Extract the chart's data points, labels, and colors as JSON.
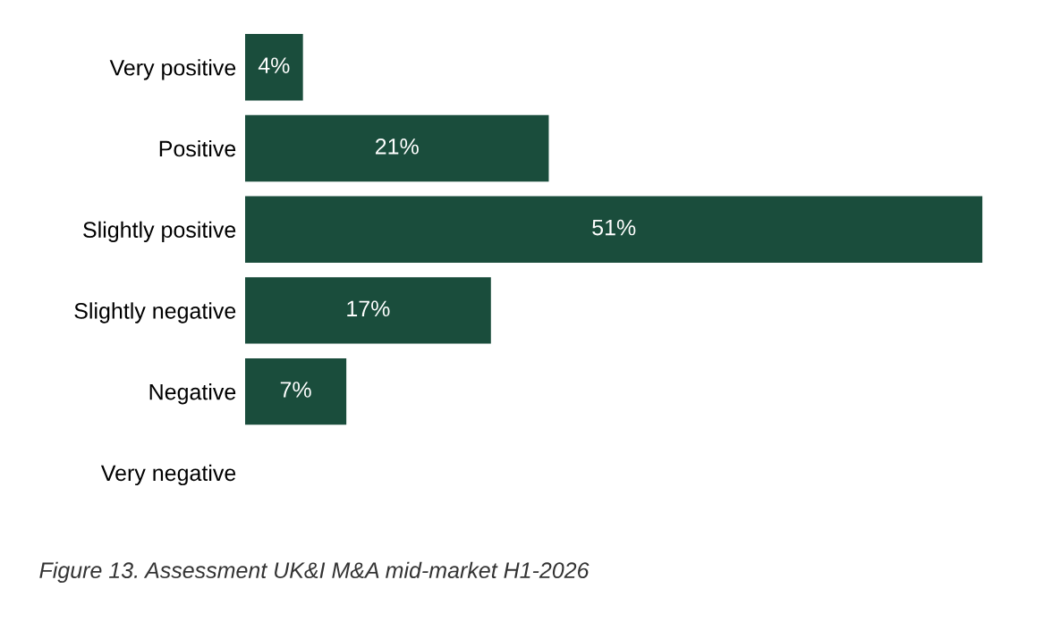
{
  "chart_data": {
    "type": "bar",
    "orientation": "horizontal",
    "categories": [
      "Very positive",
      "Positive",
      "Slightly positive",
      "Slightly negative",
      "Negative",
      "Very negative"
    ],
    "values": [
      4,
      21,
      51,
      17,
      7,
      null
    ],
    "value_labels": [
      "4%",
      "21%",
      "51%",
      "17%",
      "7%",
      null
    ],
    "color": "#1a4d3c",
    "xlim": [
      0,
      51
    ],
    "tick_labels": "y",
    "grid": false,
    "legend": false,
    "annotations": [
      "Figure 13. Assessment UK&I M&A mid-market H1-2026"
    ]
  }
}
